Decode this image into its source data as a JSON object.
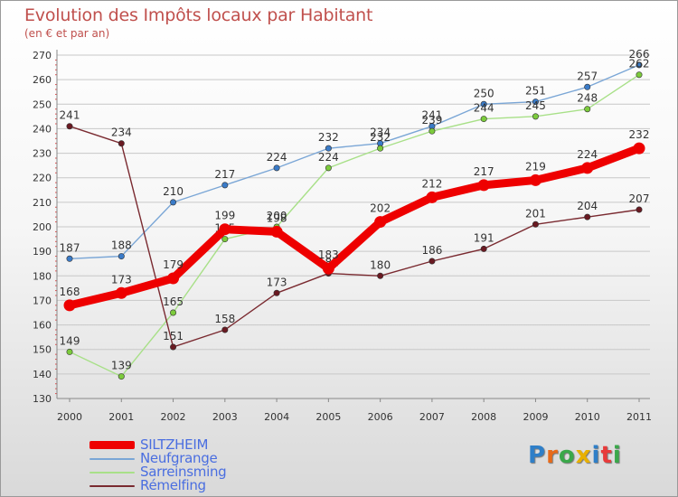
{
  "chart_data": {
    "type": "line",
    "title": "Evolution des Impôts locaux par Habitant",
    "subtitle": "(en € et par an)",
    "xlabel": "",
    "ylabel": "",
    "x": [
      "2000",
      "2001",
      "2002",
      "2003",
      "2004",
      "2005",
      "2006",
      "2007",
      "2008",
      "2009",
      "2010",
      "2011"
    ],
    "ylim": [
      130,
      270
    ],
    "yticks": [
      130,
      140,
      150,
      160,
      170,
      180,
      190,
      200,
      210,
      220,
      230,
      240,
      250,
      260,
      270
    ],
    "grid": true,
    "legend_position": "bottom-left",
    "series": [
      {
        "name": "Neufgrange",
        "color": "#7aa6d6",
        "marker": "#3a7bc8",
        "values": [
          187,
          188,
          210,
          217,
          224,
          232,
          234,
          241,
          250,
          251,
          257,
          266
        ]
      },
      {
        "name": "Sarreinsming",
        "color": "#a8e088",
        "marker": "#7ccb3c",
        "values": [
          149,
          139,
          165,
          195,
          200,
          224,
          232,
          239,
          244,
          245,
          248,
          262
        ]
      },
      {
        "name": "Rémelfing",
        "color": "#7a2a30",
        "marker": "#6a1a22",
        "values": [
          241,
          234,
          151,
          158,
          173,
          181,
          180,
          186,
          191,
          201,
          204,
          207
        ]
      },
      {
        "name": "SILTZHEIM",
        "color": "#ee0000",
        "marker": "#ee0000",
        "values": [
          168,
          173,
          179,
          199,
          198,
          183,
          202,
          212,
          217,
          219,
          224,
          232
        ]
      }
    ],
    "legend_order": [
      "SILTZHEIM",
      "Neufgrange",
      "Sarreinsming",
      "Rémelfing"
    ]
  },
  "brand": {
    "letters": [
      "P",
      "r",
      "o",
      "x",
      "i",
      "t",
      "i"
    ],
    "colors": [
      "#2f7fc8",
      "#e86a1a",
      "#3aa84a",
      "#e8b000",
      "#2f7fc8",
      "#e83a3a",
      "#3aa84a"
    ]
  }
}
